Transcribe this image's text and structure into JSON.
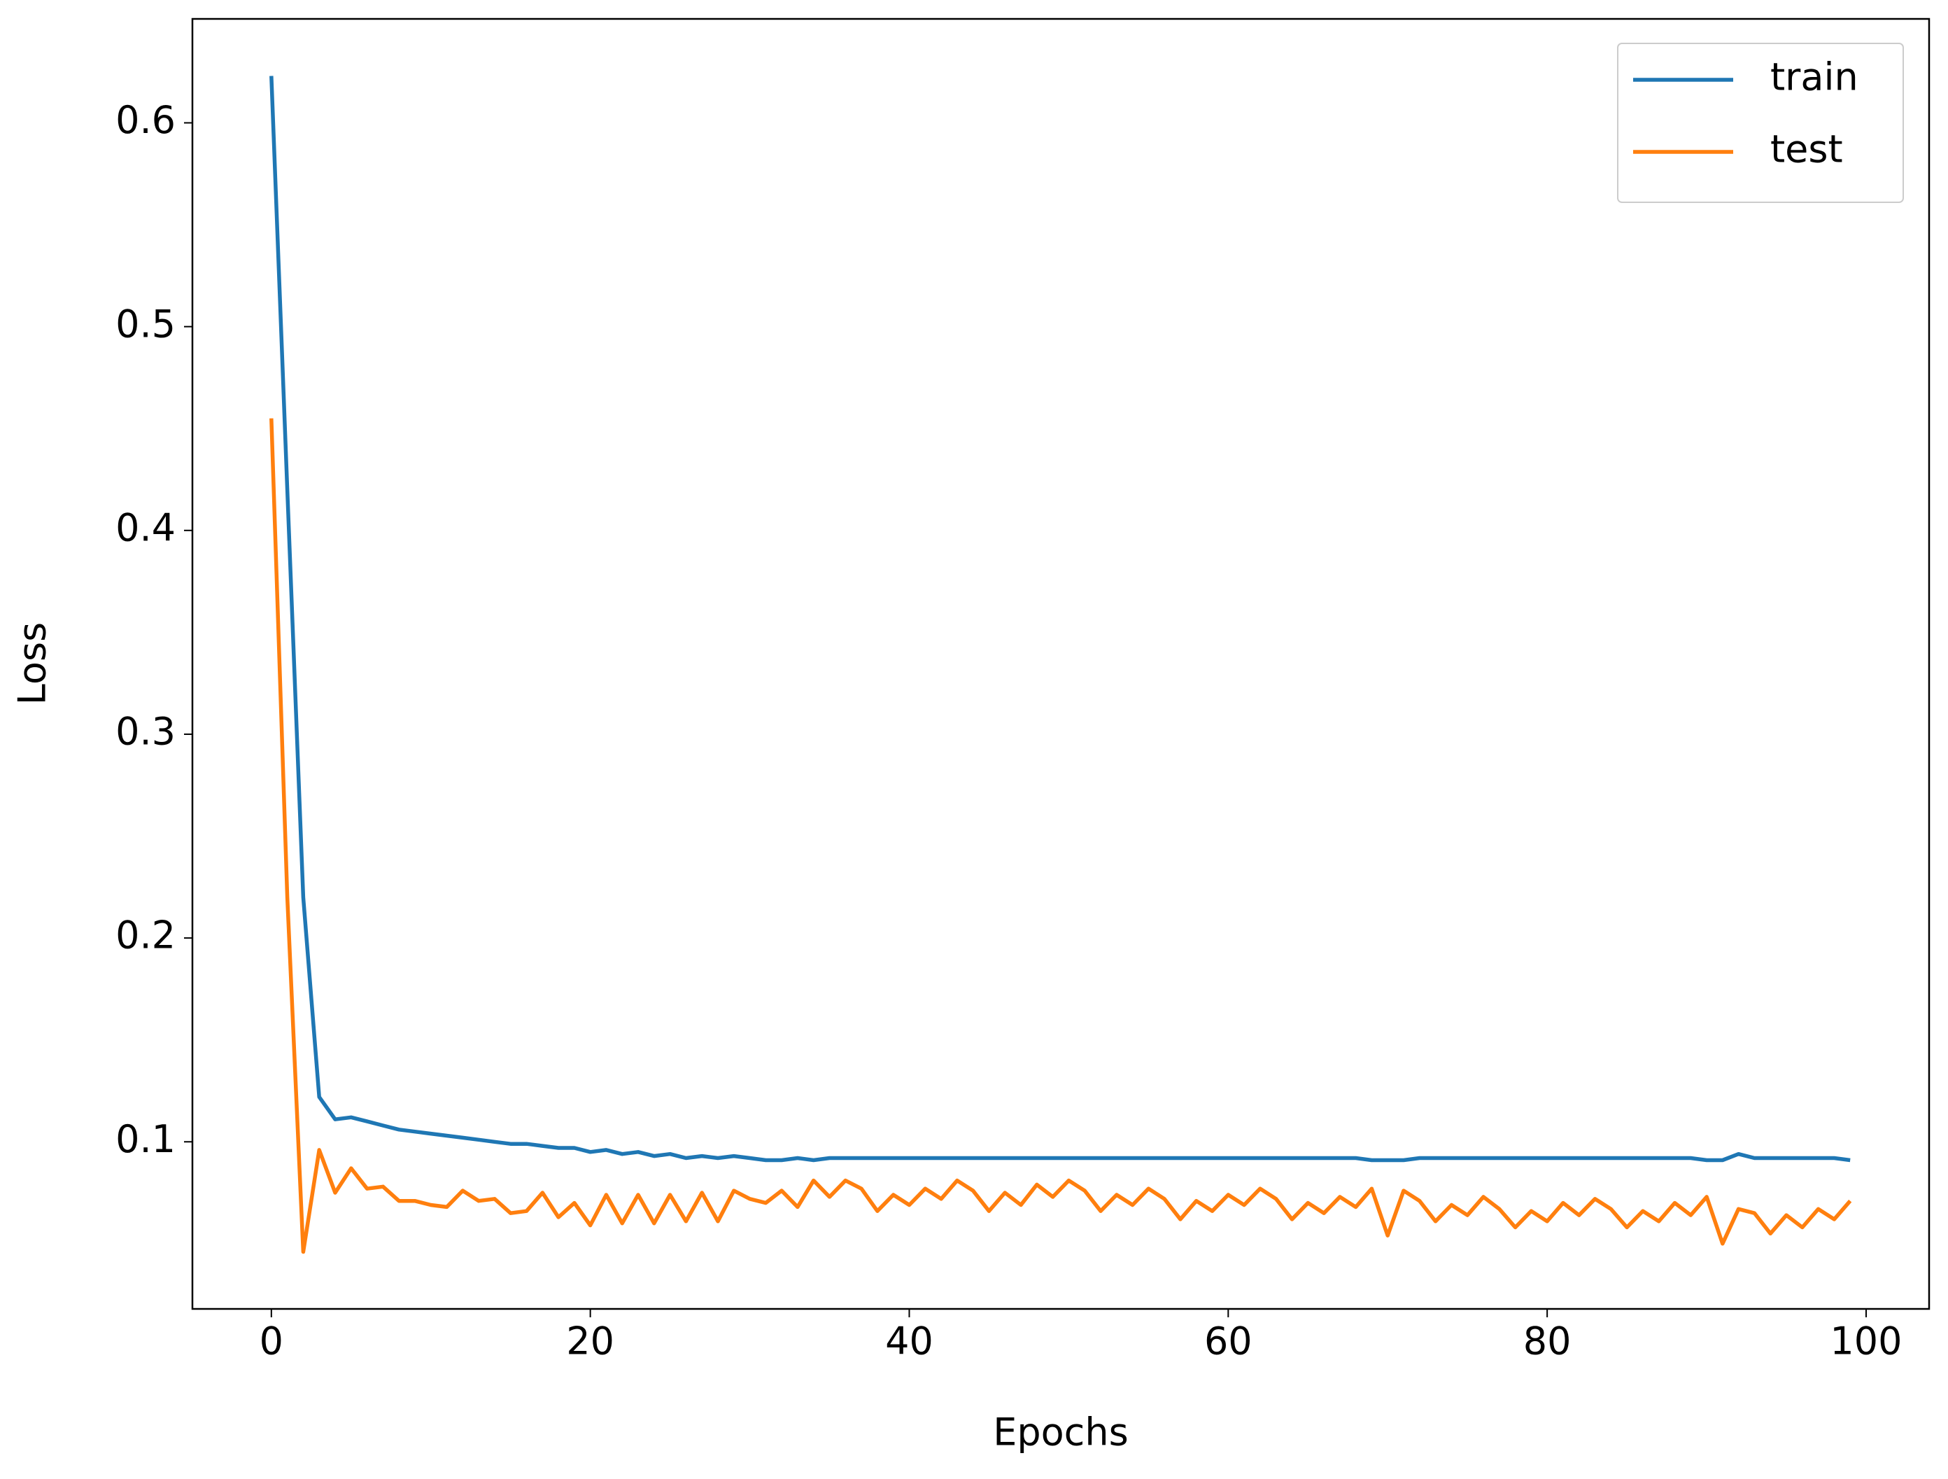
{
  "chart_data": {
    "type": "line",
    "xlabel": "Epochs",
    "ylabel": "Loss",
    "x": [
      0,
      1,
      2,
      3,
      4,
      5,
      6,
      7,
      8,
      9,
      10,
      11,
      12,
      13,
      14,
      15,
      16,
      17,
      18,
      19,
      20,
      21,
      22,
      23,
      24,
      25,
      26,
      27,
      28,
      29,
      30,
      31,
      32,
      33,
      34,
      35,
      36,
      37,
      38,
      39,
      40,
      41,
      42,
      43,
      44,
      45,
      46,
      47,
      48,
      49,
      50,
      51,
      52,
      53,
      54,
      55,
      56,
      57,
      58,
      59,
      60,
      61,
      62,
      63,
      64,
      65,
      66,
      67,
      68,
      69,
      70,
      71,
      72,
      73,
      74,
      75,
      76,
      77,
      78,
      79,
      80,
      81,
      82,
      83,
      84,
      85,
      86,
      87,
      88,
      89,
      90,
      91,
      92,
      93,
      94,
      95,
      96,
      97,
      98,
      99
    ],
    "series": [
      {
        "name": "train",
        "color": "#1f77b4",
        "values": [
          0.623,
          0.42,
          0.22,
          0.122,
          0.111,
          0.112,
          0.11,
          0.108,
          0.106,
          0.105,
          0.104,
          0.103,
          0.102,
          0.101,
          0.1,
          0.099,
          0.099,
          0.098,
          0.097,
          0.097,
          0.095,
          0.096,
          0.094,
          0.095,
          0.093,
          0.094,
          0.092,
          0.093,
          0.092,
          0.093,
          0.092,
          0.091,
          0.091,
          0.092,
          0.091,
          0.092,
          0.092,
          0.092,
          0.092,
          0.092,
          0.092,
          0.092,
          0.092,
          0.092,
          0.092,
          0.092,
          0.092,
          0.092,
          0.092,
          0.092,
          0.092,
          0.092,
          0.092,
          0.092,
          0.092,
          0.092,
          0.092,
          0.092,
          0.092,
          0.092,
          0.092,
          0.092,
          0.092,
          0.092,
          0.092,
          0.092,
          0.092,
          0.092,
          0.092,
          0.091,
          0.091,
          0.091,
          0.092,
          0.092,
          0.092,
          0.092,
          0.092,
          0.092,
          0.092,
          0.092,
          0.092,
          0.092,
          0.092,
          0.092,
          0.092,
          0.092,
          0.092,
          0.092,
          0.092,
          0.092,
          0.091,
          0.091,
          0.094,
          0.092,
          0.092,
          0.092,
          0.092,
          0.092,
          0.092,
          0.091
        ]
      },
      {
        "name": "test",
        "color": "#ff7f0e",
        "values": [
          0.455,
          0.22,
          0.046,
          0.096,
          0.075,
          0.087,
          0.077,
          0.078,
          0.071,
          0.071,
          0.069,
          0.068,
          0.076,
          0.071,
          0.072,
          0.065,
          0.066,
          0.075,
          0.063,
          0.07,
          0.059,
          0.074,
          0.06,
          0.074,
          0.06,
          0.074,
          0.061,
          0.075,
          0.061,
          0.076,
          0.072,
          0.07,
          0.076,
          0.068,
          0.081,
          0.073,
          0.081,
          0.077,
          0.066,
          0.074,
          0.069,
          0.077,
          0.072,
          0.081,
          0.076,
          0.066,
          0.075,
          0.069,
          0.079,
          0.073,
          0.081,
          0.076,
          0.066,
          0.074,
          0.069,
          0.077,
          0.072,
          0.062,
          0.071,
          0.066,
          0.074,
          0.069,
          0.077,
          0.072,
          0.062,
          0.07,
          0.065,
          0.073,
          0.068,
          0.077,
          0.054,
          0.076,
          0.071,
          0.061,
          0.069,
          0.064,
          0.073,
          0.067,
          0.058,
          0.066,
          0.061,
          0.07,
          0.064,
          0.072,
          0.067,
          0.058,
          0.066,
          0.061,
          0.07,
          0.064,
          0.073,
          0.05,
          0.067,
          0.065,
          0.055,
          0.064,
          0.058,
          0.067,
          0.062,
          0.071
        ]
      }
    ],
    "xlim": [
      -4.95,
      103.95
    ],
    "xticks": [
      0,
      20,
      40,
      60,
      80,
      100
    ],
    "ylim": [
      0.018,
      0.651
    ],
    "yticks": [
      0.1,
      0.2,
      0.3,
      0.4,
      0.5,
      0.6
    ],
    "grid": false,
    "legend": "upper right"
  }
}
